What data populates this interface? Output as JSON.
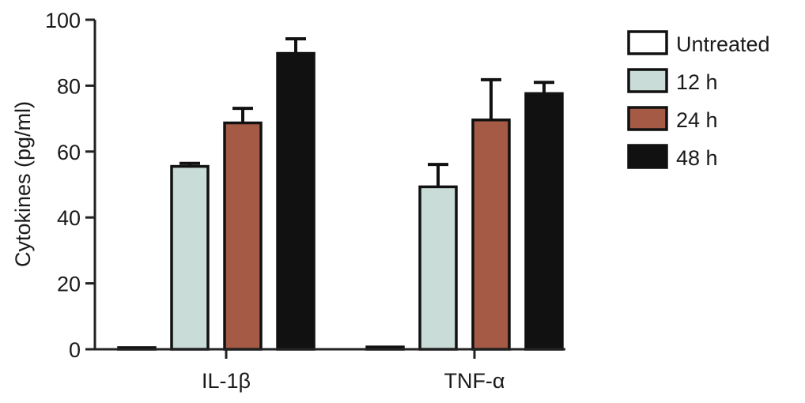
{
  "chart_data": {
    "type": "bar",
    "title": "",
    "xlabel": "",
    "ylabel": "Cytokines (pg/ml)",
    "ylim": [
      0,
      100
    ],
    "yticks": [
      0,
      20,
      40,
      60,
      80,
      100
    ],
    "categories": [
      "IL-1β",
      "TNF-α"
    ],
    "error_bars": "upper only",
    "legend_position": "top-right",
    "series": [
      {
        "name": "Untreated",
        "color": "#ffffff",
        "values": [
          0.5,
          0.7
        ],
        "errors": [
          0,
          0
        ]
      },
      {
        "name": "12 h",
        "color": "#c9dcd8",
        "values": [
          55.5,
          49.3
        ],
        "errors": [
          0.9,
          6.8
        ]
      },
      {
        "name": "24 h",
        "color": "#a55a45",
        "values": [
          68.7,
          69.6
        ],
        "errors": [
          4.4,
          12.2
        ]
      },
      {
        "name": "48 h",
        "color": "#111111",
        "values": [
          89.8,
          77.6
        ],
        "errors": [
          4.4,
          3.4
        ]
      }
    ]
  }
}
